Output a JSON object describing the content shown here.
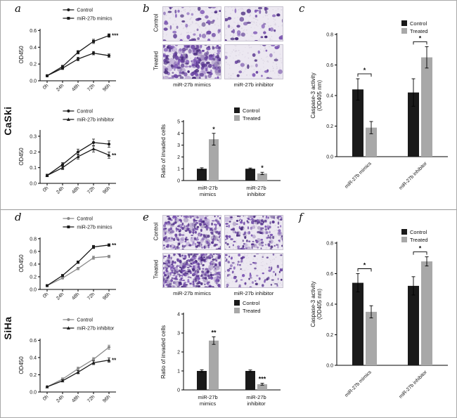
{
  "figure": {
    "cell_lines": [
      "CaSki",
      "SiHa"
    ],
    "panels": [
      "a",
      "b",
      "c",
      "d",
      "e",
      "f"
    ]
  },
  "micro": {
    "row_labels": [
      "Control",
      "Treated"
    ],
    "col_labels": [
      "miR-27b mimics",
      "miR-27b inhibitor"
    ],
    "b": {
      "dot": 2.3,
      "cells": [
        [
          55,
          42
        ],
        [
          170,
          26
        ]
      ]
    },
    "e": {
      "dot": 1.6,
      "cells": [
        [
          230,
          150
        ],
        [
          330,
          85
        ]
      ]
    }
  },
  "colors": {
    "control_bar": "#1a1a1a",
    "treated_bar": "#a8a8a8",
    "line_black": "#1a1a1a",
    "line_gray": "#8a8a8a"
  },
  "chart_data": [
    {
      "id": "caski_mimics_growth",
      "type": "line",
      "x": [
        "0h",
        "24h",
        "48h",
        "72h",
        "96h"
      ],
      "ylabel": "OD450",
      "ymax": 0.62,
      "yticks": [
        "0.0",
        "0.2",
        "0.4",
        "0.6"
      ],
      "series": [
        {
          "name": "Control",
          "marker": "circle",
          "color": "#1a1a1a",
          "values": [
            0.06,
            0.15,
            0.26,
            0.33,
            0.3
          ],
          "err": [
            0.01,
            0.015,
            0.02,
            0.02,
            0.02
          ]
        },
        {
          "name": "miR-27b mimics",
          "marker": "square",
          "color": "#1a1a1a",
          "values": [
            0.06,
            0.17,
            0.34,
            0.47,
            0.54
          ],
          "err": [
            0.01,
            0.015,
            0.02,
            0.025,
            0.02
          ],
          "sig": "***"
        }
      ]
    },
    {
      "id": "caski_inhibitor_growth",
      "type": "line",
      "x": [
        "0h",
        "24h",
        "48h",
        "72h",
        "96h"
      ],
      "ylabel": "OD450",
      "ymax": 0.34,
      "yticks": [
        "0.0",
        "0.1",
        "0.2",
        "0.3"
      ],
      "series": [
        {
          "name": "Control",
          "marker": "circle",
          "color": "#1a1a1a",
          "values": [
            0.05,
            0.12,
            0.2,
            0.26,
            0.25
          ],
          "err": [
            0.008,
            0.012,
            0.018,
            0.022,
            0.02
          ]
        },
        {
          "name": "miR-27b inhibitor",
          "marker": "triangle",
          "color": "#1a1a1a",
          "values": [
            0.05,
            0.1,
            0.17,
            0.22,
            0.18
          ],
          "err": [
            0.008,
            0.012,
            0.015,
            0.02,
            0.02
          ],
          "sig": "**"
        }
      ]
    },
    {
      "id": "caski_invasion",
      "type": "bar",
      "categories": [
        "miR-27b mimics",
        "miR-27b inhibitor"
      ],
      "ylabel": "Ratio of invaded cells",
      "ymax": 5,
      "yticks": [
        "0",
        "1",
        "2",
        "3",
        "4",
        "5"
      ],
      "cat_rotate": false,
      "series": [
        {
          "name": "Control",
          "color": "#1a1a1a",
          "values": [
            1.0,
            1.0
          ],
          "err": [
            0.08,
            0.06
          ]
        },
        {
          "name": "Treated",
          "color": "#a8a8a8",
          "values": [
            3.5,
            0.6
          ],
          "err": [
            0.5,
            0.1
          ],
          "sig": [
            "*",
            "*"
          ]
        }
      ]
    },
    {
      "id": "caski_caspase",
      "type": "bar",
      "categories": [
        "miR-27b mimics",
        "miR-27b inhibitor"
      ],
      "ylabel_lines": [
        "Caspase-3 activity",
        "(OD405 nm)"
      ],
      "ymax": 0.8,
      "yticks": [
        "0.0",
        "0.2",
        "0.4",
        "0.6",
        "0.8"
      ],
      "cat_rotate": true,
      "barw": 16,
      "series": [
        {
          "name": "Control",
          "color": "#1a1a1a",
          "values": [
            0.44,
            0.42
          ],
          "err": [
            0.07,
            0.09
          ]
        },
        {
          "name": "Treated",
          "color": "#a8a8a8",
          "values": [
            0.19,
            0.65
          ],
          "err": [
            0.04,
            0.07
          ]
        }
      ],
      "group_sig": [
        "*",
        "*"
      ]
    },
    {
      "id": "siha_mimics_growth",
      "type": "line",
      "x": [
        "0h",
        "24h",
        "48h",
        "72h",
        "96h"
      ],
      "ylabel": "OD450",
      "ymax": 0.82,
      "yticks": [
        "0.0",
        "0.2",
        "0.4",
        "0.6",
        "0.8"
      ],
      "series": [
        {
          "name": "Control",
          "marker": "circle",
          "color": "#8a8a8a",
          "values": [
            0.06,
            0.18,
            0.33,
            0.5,
            0.52
          ],
          "err": [
            0.01,
            0.015,
            0.02,
            0.025,
            0.02
          ]
        },
        {
          "name": "miR-27b mimics",
          "marker": "square",
          "color": "#1a1a1a",
          "values": [
            0.06,
            0.22,
            0.43,
            0.67,
            0.7
          ],
          "err": [
            0.01,
            0.015,
            0.02,
            0.025,
            0.02
          ],
          "sig": "**"
        }
      ]
    },
    {
      "id": "siha_inhibitor_growth",
      "type": "line",
      "x": [
        "0h",
        "24h",
        "48h",
        "72h",
        "96h"
      ],
      "ylabel": "OD450",
      "ymax": 0.62,
      "yticks": [
        "0.0",
        "0.2",
        "0.4",
        "0.6"
      ],
      "series": [
        {
          "name": "Control",
          "marker": "circle",
          "color": "#8a8a8a",
          "values": [
            0.06,
            0.15,
            0.27,
            0.38,
            0.52
          ],
          "err": [
            0.01,
            0.015,
            0.02,
            0.02,
            0.025
          ]
        },
        {
          "name": "miR-27b inhibitor",
          "marker": "triangle",
          "color": "#1a1a1a",
          "values": [
            0.06,
            0.13,
            0.23,
            0.34,
            0.37
          ],
          "err": [
            0.01,
            0.012,
            0.018,
            0.022,
            0.025
          ],
          "sig": "**"
        }
      ]
    },
    {
      "id": "siha_invasion",
      "type": "bar",
      "categories": [
        "miR-27b mimics",
        "miR-27b inhibitor"
      ],
      "ylabel": "Ratio of invaded cells",
      "ymax": 4,
      "yticks": [
        "0",
        "1",
        "2",
        "3",
        "4"
      ],
      "cat_rotate": false,
      "series": [
        {
          "name": "Control",
          "color": "#1a1a1a",
          "values": [
            1.0,
            1.0
          ],
          "err": [
            0.06,
            0.05
          ]
        },
        {
          "name": "Treated",
          "color": "#a8a8a8",
          "values": [
            2.6,
            0.3
          ],
          "err": [
            0.2,
            0.05
          ],
          "sig": [
            "**",
            "***"
          ]
        }
      ]
    },
    {
      "id": "siha_caspase",
      "type": "bar",
      "categories": [
        "miR-27b mimics",
        "miR-27b inhibitor"
      ],
      "ylabel_lines": [
        "Caspase-3 activity",
        "(OD405 nm)"
      ],
      "ymax": 0.8,
      "yticks": [
        "0.0",
        "0.2",
        "0.4",
        "0.6",
        "0.8"
      ],
      "cat_rotate": true,
      "barw": 16,
      "series": [
        {
          "name": "Control",
          "color": "#1a1a1a",
          "values": [
            0.54,
            0.52
          ],
          "err": [
            0.06,
            0.06
          ]
        },
        {
          "name": "Treated",
          "color": "#a8a8a8",
          "values": [
            0.35,
            0.68
          ],
          "err": [
            0.04,
            0.03
          ]
        }
      ],
      "group_sig": [
        "*",
        "*"
      ]
    }
  ]
}
